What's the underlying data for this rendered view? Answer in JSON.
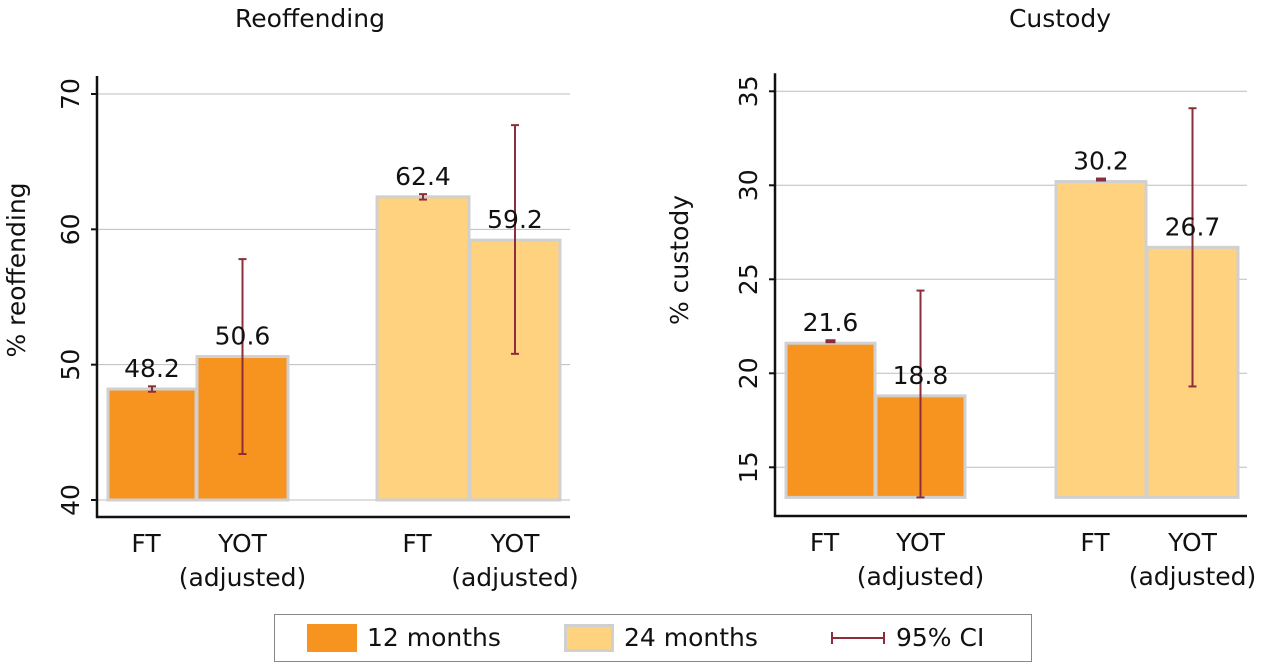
{
  "colors": {
    "months12": "#F7941F",
    "months24": "#FFD280",
    "bar_border": "#D0D0D0",
    "ci": "#8B2E3A",
    "grid": "#BDBDBD",
    "axis": "#111111"
  },
  "legend": {
    "items": [
      {
        "label": "12 months",
        "type": "swatch",
        "series": "months12"
      },
      {
        "label": "24 months",
        "type": "swatch",
        "series": "months24"
      },
      {
        "label": "95% CI",
        "type": "errorbar"
      }
    ]
  },
  "chart_data": [
    {
      "type": "bar",
      "title": "Reoffending",
      "xlabel": "",
      "ylabel": "% reoffending",
      "ylim": [
        40,
        70
      ],
      "yticks": [
        40,
        50,
        60,
        70
      ],
      "grid": true,
      "baseline": 40,
      "groups": [
        {
          "series": "12 months",
          "color_key": "months12",
          "bars": [
            {
              "category": [
                "FT"
              ],
              "value": 48.2,
              "ci": [
                48.0,
                48.4
              ],
              "label": "48.2"
            },
            {
              "category": [
                "YOT",
                "(adjusted)"
              ],
              "value": 50.6,
              "ci": [
                43.4,
                57.8
              ],
              "label": "50.6"
            }
          ]
        },
        {
          "series": "24 months",
          "color_key": "months24",
          "bars": [
            {
              "category": [
                "FT"
              ],
              "value": 62.4,
              "ci": [
                62.2,
                62.6
              ],
              "label": "62.4"
            },
            {
              "category": [
                "YOT",
                "(adjusted)"
              ],
              "value": 59.2,
              "ci": [
                50.8,
                67.7
              ],
              "label": "59.2"
            }
          ]
        }
      ]
    },
    {
      "type": "bar",
      "title": "Custody",
      "xlabel": "",
      "ylabel": "% custody",
      "ylim": [
        13.4,
        35
      ],
      "yticks": [
        15,
        20,
        25,
        30,
        35
      ],
      "grid": true,
      "baseline": 13.4,
      "groups": [
        {
          "series": "12 months",
          "color_key": "months12",
          "bars": [
            {
              "category": [
                "FT"
              ],
              "value": 21.6,
              "ci": [
                21.5,
                21.7
              ],
              "label": "21.6"
            },
            {
              "category": [
                "YOT",
                "(adjusted)"
              ],
              "value": 18.8,
              "ci": [
                13.4,
                24.4
              ],
              "label": "18.8"
            }
          ]
        },
        {
          "series": "24 months",
          "color_key": "months24",
          "bars": [
            {
              "category": [
                "FT"
              ],
              "value": 30.2,
              "ci": [
                30.1,
                30.3
              ],
              "label": "30.2"
            },
            {
              "category": [
                "YOT",
                "(adjusted)"
              ],
              "value": 26.7,
              "ci": [
                19.3,
                34.1
              ],
              "label": "26.7"
            }
          ]
        }
      ]
    }
  ]
}
